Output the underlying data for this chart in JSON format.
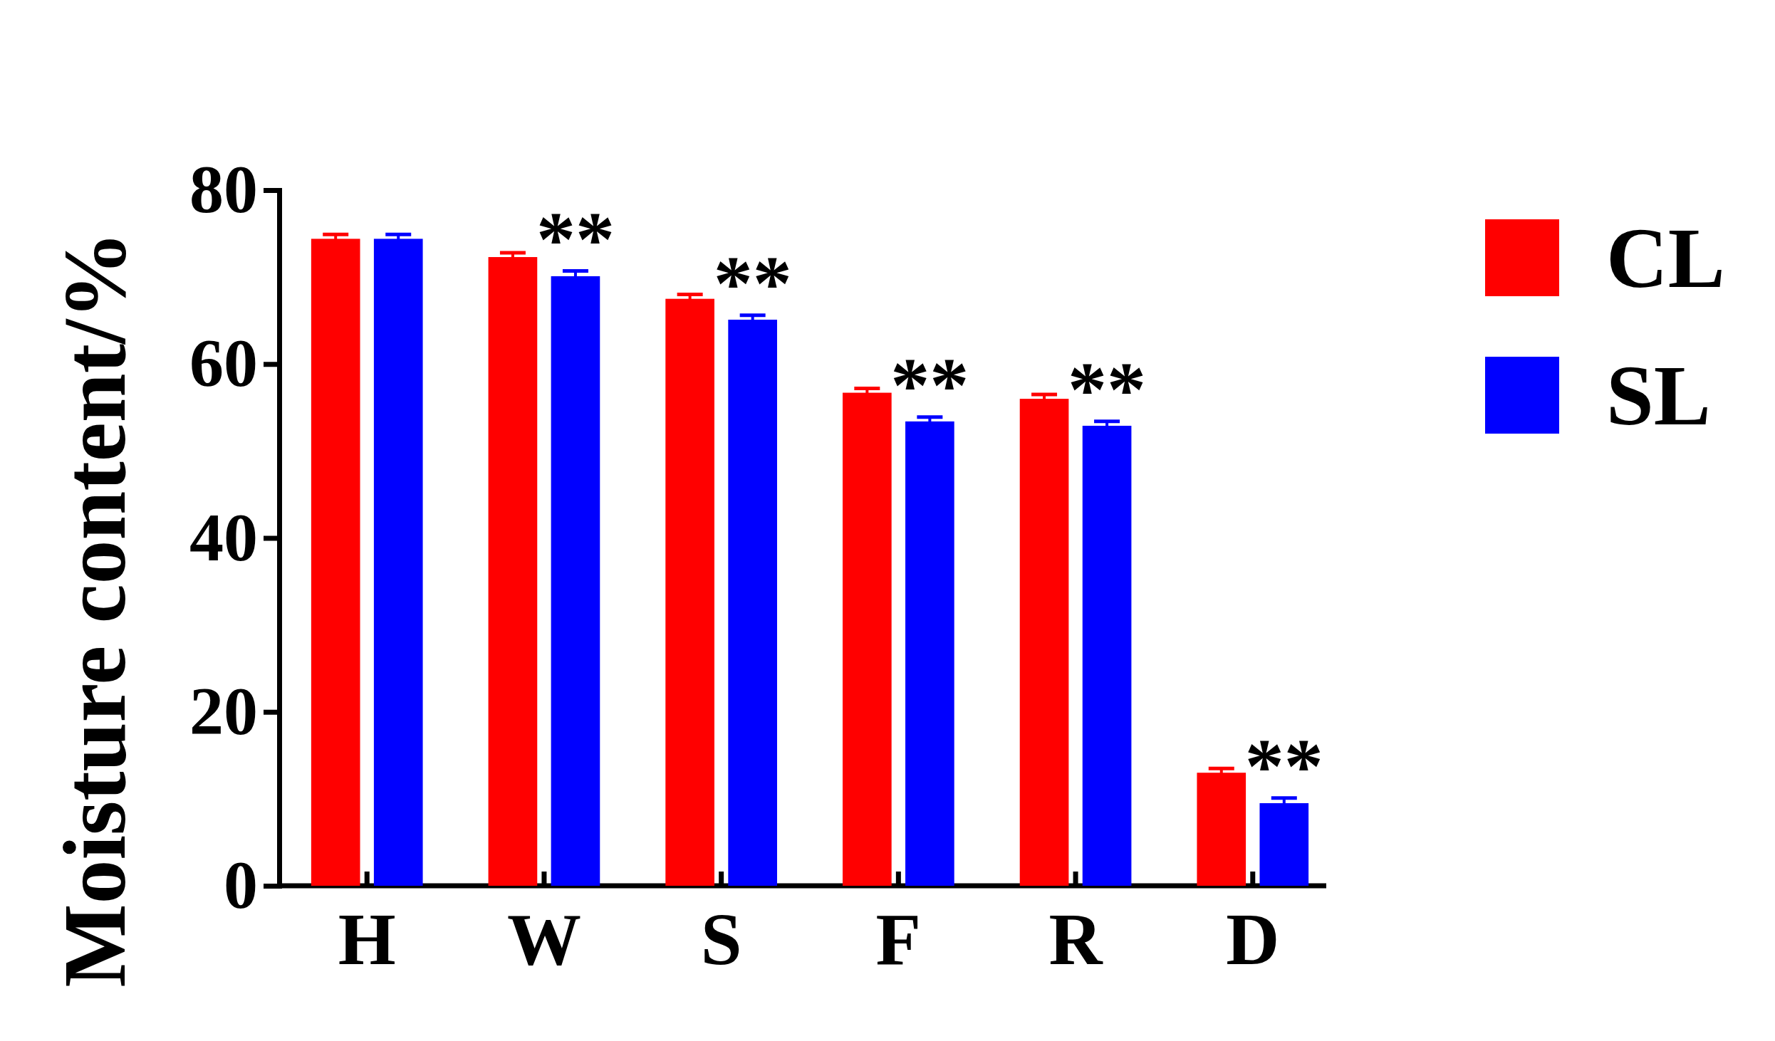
{
  "chart_data": {
    "type": "bar",
    "ylabel": "Moisture content/%",
    "categories": [
      "H",
      "W",
      "S",
      "F",
      "R",
      "D"
    ],
    "series": [
      {
        "name": "CL",
        "color": "#ff0000",
        "values": [
          74.4,
          72.3,
          67.5,
          56.7,
          56.0,
          13.0
        ],
        "errors": [
          0.5,
          0.5,
          0.5,
          0.5,
          0.5,
          0.5
        ]
      },
      {
        "name": "SL",
        "color": "#0000ff",
        "values": [
          74.4,
          70.1,
          65.1,
          53.4,
          52.9,
          9.5
        ],
        "errors": [
          0.5,
          0.6,
          0.5,
          0.5,
          0.5,
          0.6
        ]
      }
    ],
    "ylim": [
      0,
      80
    ],
    "yticks": [
      0,
      20,
      40,
      60,
      80
    ],
    "grid": false,
    "legend": "right",
    "annotations": [
      "**",
      "**",
      "**",
      "**",
      "**"
    ]
  }
}
